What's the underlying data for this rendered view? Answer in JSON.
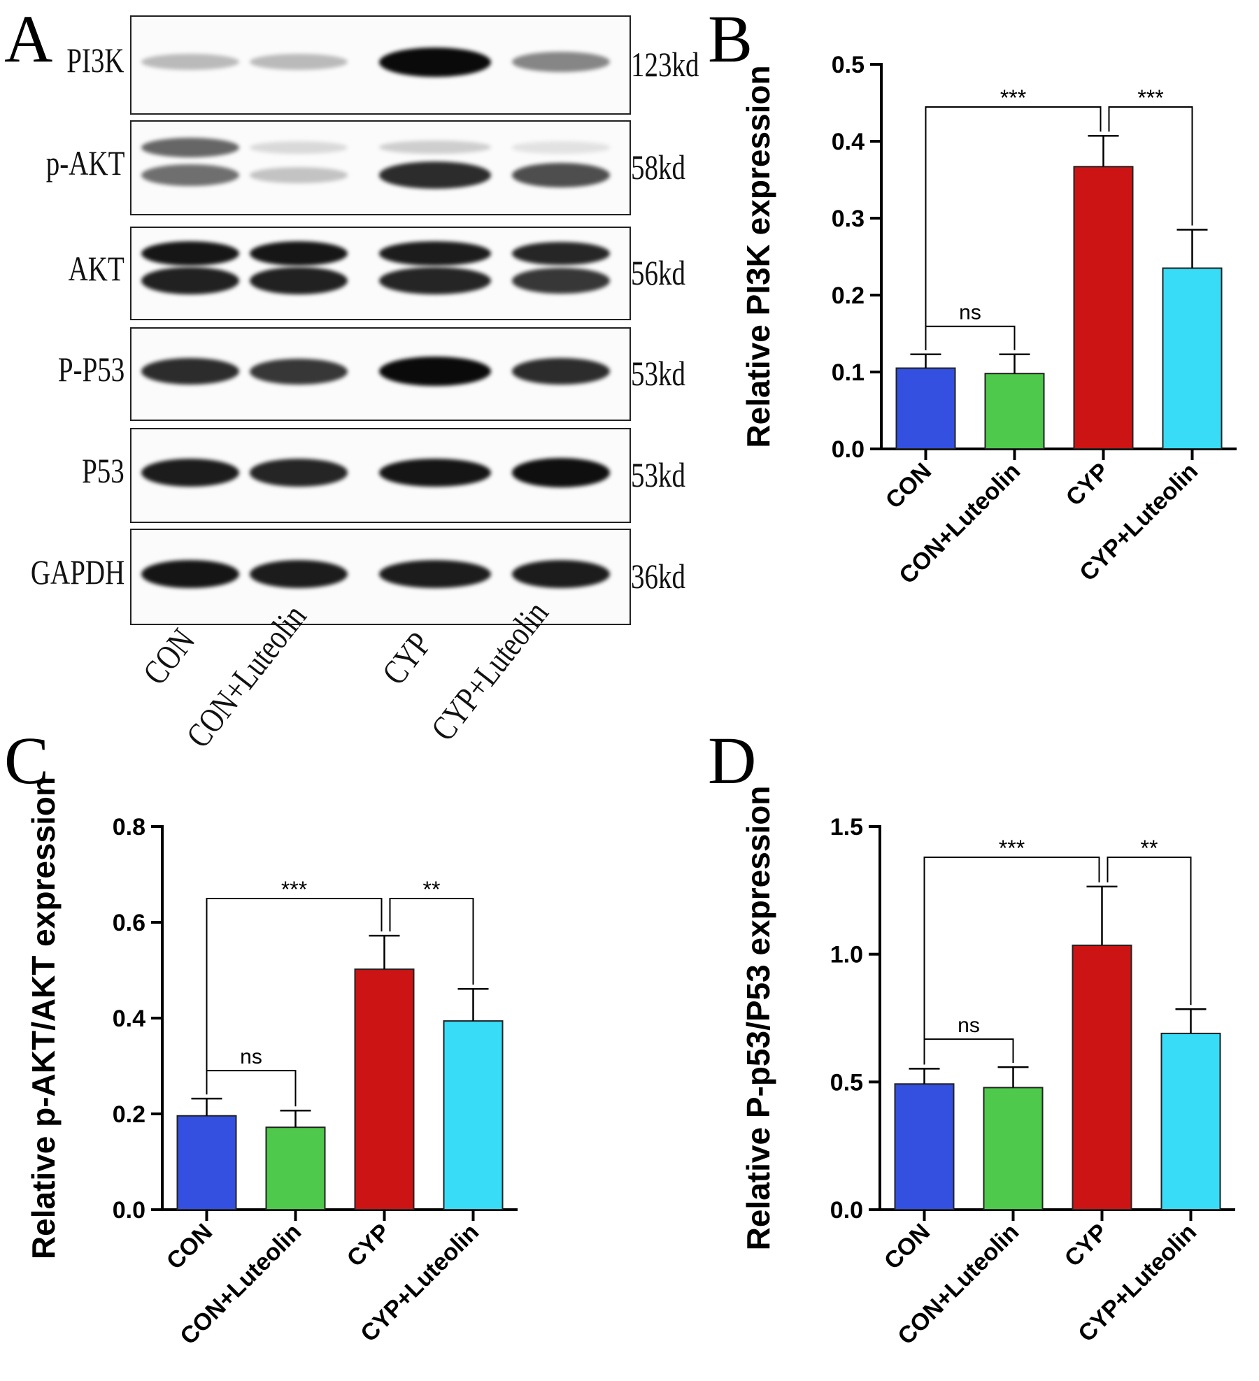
{
  "panels": {
    "A": "A",
    "B": "B",
    "C": "C",
    "D": "D"
  },
  "blot": {
    "lanes": [
      "CON",
      "CON+Luteolin",
      "CYP",
      "CYP+Luteolin"
    ],
    "rows": [
      {
        "protein": "PI3K",
        "kd": "123kd",
        "intensity": [
          0.22,
          0.22,
          1.0,
          0.45
        ],
        "second_band": false
      },
      {
        "protein": "p-AKT",
        "kd": "58kd",
        "intensity": [
          0.55,
          0.18,
          0.85,
          0.7
        ],
        "second_band": true,
        "upper_intensity": [
          0.6,
          0.1,
          0.15,
          0.06
        ]
      },
      {
        "protein": "AKT",
        "kd": "56kd",
        "intensity": [
          0.9,
          0.9,
          0.88,
          0.8
        ],
        "second_band": true,
        "upper_intensity": [
          0.95,
          0.95,
          0.92,
          0.88
        ]
      },
      {
        "protein": "P-P53",
        "kd": "53kd",
        "intensity": [
          0.85,
          0.8,
          1.0,
          0.85
        ],
        "second_band": false
      },
      {
        "protein": "P53",
        "kd": "53kd",
        "intensity": [
          0.92,
          0.88,
          0.95,
          0.98
        ],
        "second_band": false
      },
      {
        "protein": "GAPDH",
        "kd": "36kd",
        "intensity": [
          0.95,
          0.92,
          0.92,
          0.92
        ],
        "second_band": false
      }
    ]
  },
  "colors": {
    "CON": "#3350e0",
    "CON+Luteolin": "#4ec94b",
    "CYP": "#cc1414",
    "CYP+Luteolin": "#38dcf7"
  },
  "chart_data": [
    {
      "panel": "B",
      "type": "bar",
      "categories": [
        "CON",
        "CON+Luteolin",
        "CYP",
        "CYP+Luteolin"
      ],
      "values": [
        0.105,
        0.098,
        0.367,
        0.235
      ],
      "errors": [
        0.018,
        0.025,
        0.04,
        0.05
      ],
      "ylabel": "Relative PI3K expression",
      "ylim": [
        0,
        0.5
      ],
      "yticks": [
        0.0,
        0.1,
        0.2,
        0.3,
        0.4,
        0.5
      ],
      "ytick_labels": [
        "0.0",
        "0.1",
        "0.2",
        "0.3",
        "0.4",
        "0.5"
      ],
      "significance": [
        {
          "from": 0,
          "to": 1,
          "label": "ns"
        },
        {
          "from": 0,
          "to": 2,
          "label": "***"
        },
        {
          "from": 2,
          "to": 3,
          "label": "***"
        }
      ]
    },
    {
      "panel": "C",
      "type": "bar",
      "categories": [
        "CON",
        "CON+Luteolin",
        "CYP",
        "CYP+Luteolin"
      ],
      "values": [
        0.196,
        0.172,
        0.502,
        0.394
      ],
      "errors": [
        0.036,
        0.035,
        0.07,
        0.067
      ],
      "ylabel": "Relative p-AKT/AKT expression",
      "ylim": [
        0,
        0.8
      ],
      "yticks": [
        0.0,
        0.2,
        0.4,
        0.6,
        0.8
      ],
      "ytick_labels": [
        "0.0",
        "0.2",
        "0.4",
        "0.6",
        "0.8"
      ],
      "significance": [
        {
          "from": 0,
          "to": 1,
          "label": "ns"
        },
        {
          "from": 0,
          "to": 2,
          "label": "***"
        },
        {
          "from": 2,
          "to": 3,
          "label": "**"
        }
      ]
    },
    {
      "panel": "D",
      "type": "bar",
      "categories": [
        "CON",
        "CON+Luteolin",
        "CYP",
        "CYP+Luteolin"
      ],
      "values": [
        0.492,
        0.478,
        1.035,
        0.69
      ],
      "errors": [
        0.06,
        0.08,
        0.23,
        0.095
      ],
      "ylabel": "Relative P-p53/P53 expression",
      "ylim": [
        0,
        1.5
      ],
      "yticks": [
        0.0,
        0.5,
        1.0,
        1.5
      ],
      "ytick_labels": [
        "0.0",
        "0.5",
        "1.0",
        "1.5"
      ],
      "significance": [
        {
          "from": 0,
          "to": 1,
          "label": "ns"
        },
        {
          "from": 0,
          "to": 2,
          "label": "***"
        },
        {
          "from": 2,
          "to": 3,
          "label": "**"
        }
      ]
    }
  ]
}
